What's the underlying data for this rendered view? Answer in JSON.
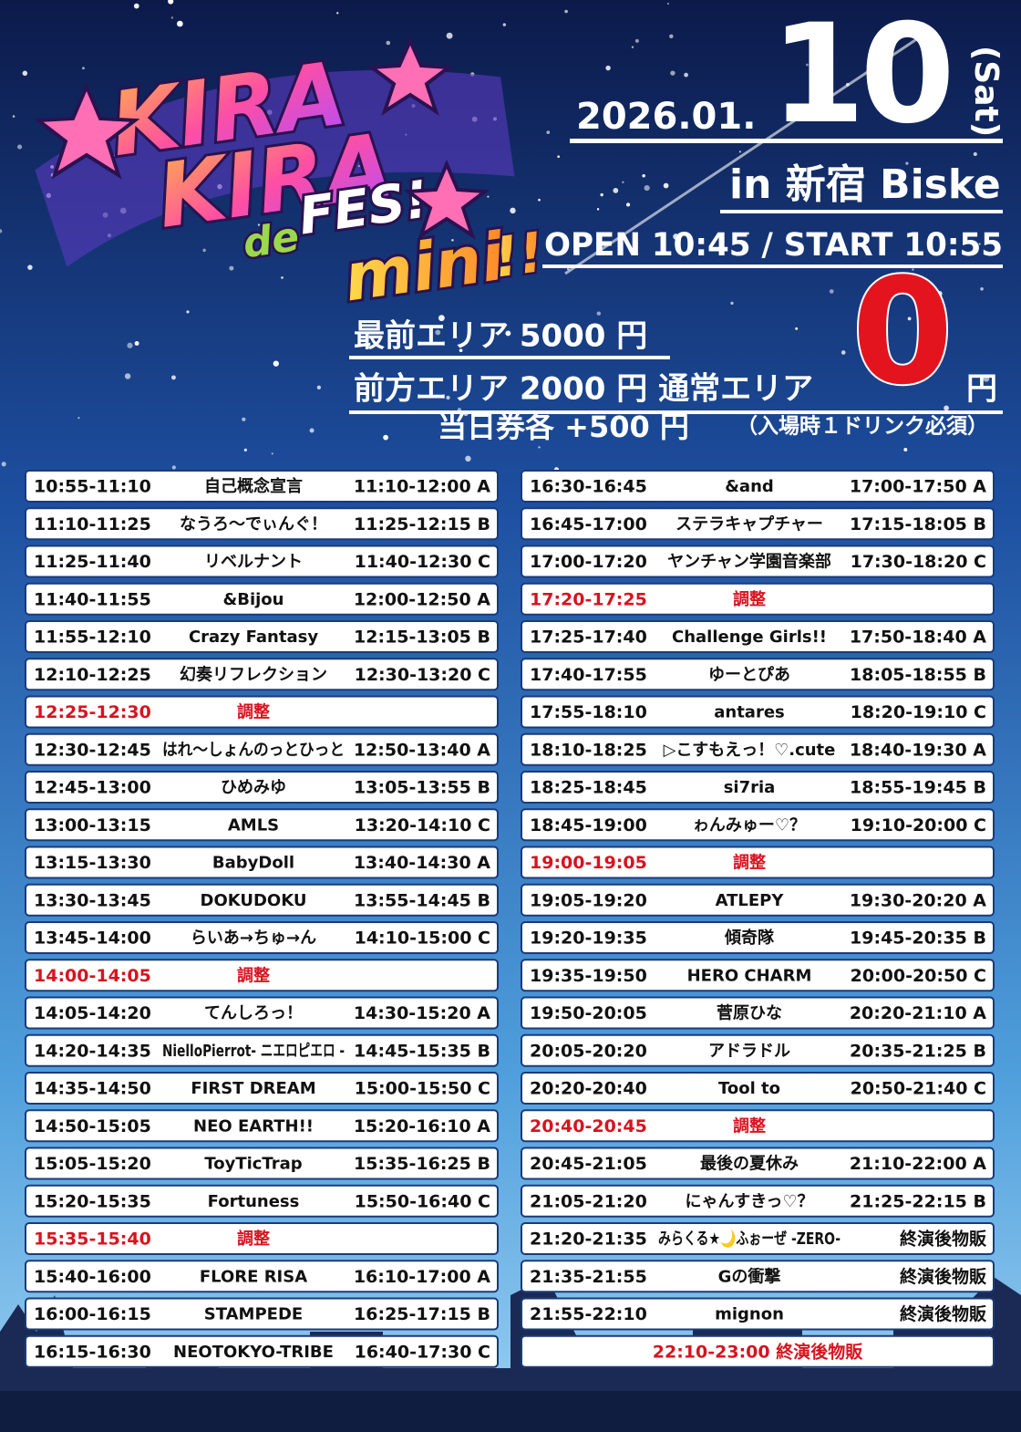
{
  "logo": {
    "line1": "KIRA",
    "line2": "KIRA",
    "de": "de",
    "fes": "FES!",
    "mini": "mini",
    "bang": "!!"
  },
  "event": {
    "date_prefix": "2026.01.",
    "day": "10",
    "weekday": "(Sat)",
    "venue": "in 新宿 Biske",
    "times": "OPEN 10:45 / START 10:55"
  },
  "tickets": {
    "front_most": "最前エリア 5000 円",
    "front_and_normal": "前方エリア 2000 円 通常エリア",
    "normal_price": "0",
    "yen": "円",
    "door": "当日券各 +500 円",
    "drink": "（入場時１ドリンク必須）"
  },
  "schedule": {
    "columns": [
      [
        {
          "time": "10:55-11:10",
          "artist": "自己概念宣言",
          "slot": "11:10-12:00 A"
        },
        {
          "time": "11:10-11:25",
          "artist": "なうろ〜でぃんぐ！",
          "slot": "11:25-12:15 B"
        },
        {
          "time": "11:25-11:40",
          "artist": "リベルナント",
          "slot": "11:40-12:30 C"
        },
        {
          "time": "11:40-11:55",
          "artist": "&Bijou",
          "slot": "12:00-12:50 A"
        },
        {
          "time": "11:55-12:10",
          "artist": "Crazy Fantasy",
          "slot": "12:15-13:05 B"
        },
        {
          "time": "12:10-12:25",
          "artist": "幻奏リフレクション",
          "slot": "12:30-13:20 C"
        },
        {
          "time": "12:25-12:30",
          "artist": "調整"
        },
        {
          "time": "12:30-12:45",
          "artist": "はれ〜しょんのっとひっと",
          "slot": "12:50-13:40 A"
        },
        {
          "time": "12:45-13:00",
          "artist": "ひめみゆ",
          "slot": "13:05-13:55 B"
        },
        {
          "time": "13:00-13:15",
          "artist": "AMLS",
          "slot": "13:20-14:10 C"
        },
        {
          "time": "13:15-13:30",
          "artist": "BabyDoll",
          "slot": "13:40-14:30 A"
        },
        {
          "time": "13:30-13:45",
          "artist": "DOKUDOKU",
          "slot": "13:55-14:45 B"
        },
        {
          "time": "13:45-14:00",
          "artist": "らいあ→ちゅ→ん",
          "slot": "14:10-15:00 C"
        },
        {
          "time": "14:00-14:05",
          "artist": "調整"
        },
        {
          "time": "14:05-14:20",
          "artist": "てんしろっ！",
          "slot": "14:30-15:20 A"
        },
        {
          "time": "14:20-14:35",
          "artist": "NielloPierrot- ニエロピエロ -",
          "slot": "14:45-15:35 B"
        },
        {
          "time": "14:35-14:50",
          "artist": "FIRST DREAM",
          "slot": "15:00-15:50 C"
        },
        {
          "time": "14:50-15:05",
          "artist": "NEO EARTH!!",
          "slot": "15:20-16:10 A"
        },
        {
          "time": "15:05-15:20",
          "artist": "ToyTicTrap",
          "slot": "15:35-16:25 B"
        },
        {
          "time": "15:20-15:35",
          "artist": "Fortuness",
          "slot": "15:50-16:40 C"
        },
        {
          "time": "15:35-15:40",
          "artist": "調整"
        },
        {
          "time": "15:40-16:00",
          "artist": "FLORE RISA",
          "slot": "16:10-17:00 A"
        },
        {
          "time": "16:00-16:15",
          "artist": "STAMPEDE",
          "slot": "16:25-17:15 B"
        },
        {
          "time": "16:15-16:30",
          "artist": "NEOTOKYO-TRIBE",
          "slot": "16:40-17:30 C"
        }
      ],
      [
        {
          "time": "16:30-16:45",
          "artist": "&and",
          "slot": "17:00-17:50 A"
        },
        {
          "time": "16:45-17:00",
          "artist": "ステラキャプチャー",
          "slot": "17:15-18:05 B"
        },
        {
          "time": "17:00-17:20",
          "artist": "ヤンチャン学園音楽部",
          "slot": "17:30-18:20 C"
        },
        {
          "time": "17:20-17:25",
          "artist": "調整"
        },
        {
          "time": "17:25-17:40",
          "artist": "Challenge Girls!!",
          "slot": "17:50-18:40 A"
        },
        {
          "time": "17:40-17:55",
          "artist": "ゆーとぴあ",
          "slot": "18:05-18:55 B"
        },
        {
          "time": "17:55-18:10",
          "artist": "antares",
          "slot": "18:20-19:10 C"
        },
        {
          "time": "18:10-18:25",
          "artist": "▷こすもえっ！♡.cute",
          "slot": "18:40-19:30 A"
        },
        {
          "time": "18:25-18:45",
          "artist": "si7ria",
          "slot": "18:55-19:45 B"
        },
        {
          "time": "18:45-19:00",
          "artist": "ゎんみゅー♡？",
          "slot": "19:10-20:00 C"
        },
        {
          "time": "19:00-19:05",
          "artist": "調整"
        },
        {
          "time": "19:05-19:20",
          "artist": "ATLEPY",
          "slot": "19:30-20:20 A"
        },
        {
          "time": "19:20-19:35",
          "artist": "傾奇隊",
          "slot": "19:45-20:35 B"
        },
        {
          "time": "19:35-19:50",
          "artist": "HERO CHARM",
          "slot": "20:00-20:50 C"
        },
        {
          "time": "19:50-20:05",
          "artist": "菅原ひな",
          "slot": "20:20-21:10 A"
        },
        {
          "time": "20:05-20:20",
          "artist": "アドラドル",
          "slot": "20:35-21:25 B"
        },
        {
          "time": "20:20-20:40",
          "artist": "Tool to",
          "slot": "20:50-21:40 C"
        },
        {
          "time": "20:40-20:45",
          "artist": "調整"
        },
        {
          "time": "20:45-21:05",
          "artist": "最後の夏休み",
          "slot": "21:10-22:00 A"
        },
        {
          "time": "21:05-21:20",
          "artist": "にゃんすきっ♡？",
          "slot": "21:25-22:15 B"
        },
        {
          "time": "21:20-21:35",
          "artist": "みらくる★🌙ふぉーぜ -ZERO-",
          "slot": "終演後物販"
        },
        {
          "time": "21:35-21:55",
          "artist": "Gの衝撃",
          "slot": "終演後物販"
        },
        {
          "time": "21:55-22:10",
          "artist": "mignon",
          "slot": "終演後物販"
        },
        {
          "text": "22:10-23:00 終演後物販"
        }
      ]
    ]
  }
}
